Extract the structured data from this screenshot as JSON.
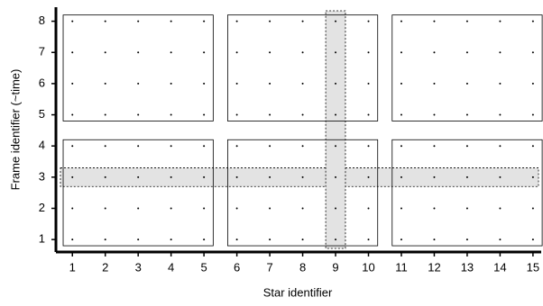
{
  "chart_data": {
    "type": "scatter",
    "xlabel": "Star identifier",
    "ylabel": "Frame identifier (~time)",
    "xlim": [
      0.5,
      15.25
    ],
    "ylim": [
      0.6,
      8.45
    ],
    "xticks": [
      1,
      2,
      3,
      4,
      5,
      6,
      7,
      8,
      9,
      10,
      11,
      12,
      13,
      14,
      15
    ],
    "yticks": [
      1,
      2,
      3,
      4,
      5,
      6,
      7,
      8
    ],
    "x": [
      1,
      2,
      3,
      4,
      5,
      6,
      7,
      8,
      9,
      10,
      11,
      12,
      13,
      14,
      15,
      1,
      2,
      3,
      4,
      5,
      6,
      7,
      8,
      9,
      10,
      11,
      12,
      13,
      14,
      15,
      1,
      2,
      3,
      4,
      5,
      6,
      7,
      8,
      9,
      10,
      11,
      12,
      13,
      14,
      15,
      1,
      2,
      3,
      4,
      5,
      6,
      7,
      8,
      9,
      10,
      11,
      12,
      13,
      14,
      15,
      1,
      2,
      3,
      4,
      5,
      6,
      7,
      8,
      9,
      10,
      11,
      12,
      13,
      14,
      15,
      1,
      2,
      3,
      4,
      5,
      6,
      7,
      8,
      9,
      10,
      11,
      12,
      13,
      14,
      15,
      1,
      2,
      3,
      4,
      5,
      6,
      7,
      8,
      9,
      10,
      11,
      12,
      13,
      14,
      15,
      1,
      2,
      3,
      4,
      5,
      6,
      7,
      8,
      9,
      10,
      11,
      12,
      13,
      14,
      15
    ],
    "y": [
      1,
      1,
      1,
      1,
      1,
      1,
      1,
      1,
      1,
      1,
      1,
      1,
      1,
      1,
      1,
      2,
      2,
      2,
      2,
      2,
      2,
      2,
      2,
      2,
      2,
      2,
      2,
      2,
      2,
      2,
      3,
      3,
      3,
      3,
      3,
      3,
      3,
      3,
      3,
      3,
      3,
      3,
      3,
      3,
      3,
      4,
      4,
      4,
      4,
      4,
      4,
      4,
      4,
      4,
      4,
      4,
      4,
      4,
      4,
      4,
      5,
      5,
      5,
      5,
      5,
      5,
      5,
      5,
      5,
      5,
      5,
      5,
      5,
      5,
      5,
      6,
      6,
      6,
      6,
      6,
      6,
      6,
      6,
      6,
      6,
      6,
      6,
      6,
      6,
      6,
      7,
      7,
      7,
      7,
      7,
      7,
      7,
      7,
      7,
      7,
      7,
      7,
      7,
      7,
      7,
      8,
      8,
      8,
      8,
      8,
      8,
      8,
      8,
      8,
      8,
      8,
      8,
      8,
      8,
      8
    ],
    "color": "#000000",
    "x_groups": [
      [
        1,
        5
      ],
      [
        6,
        10
      ],
      [
        11,
        15
      ]
    ],
    "y_groups": [
      [
        1,
        4
      ],
      [
        5,
        8
      ]
    ],
    "highlight": {
      "x": 9,
      "y": 3,
      "color": "#e3e3e3"
    }
  }
}
